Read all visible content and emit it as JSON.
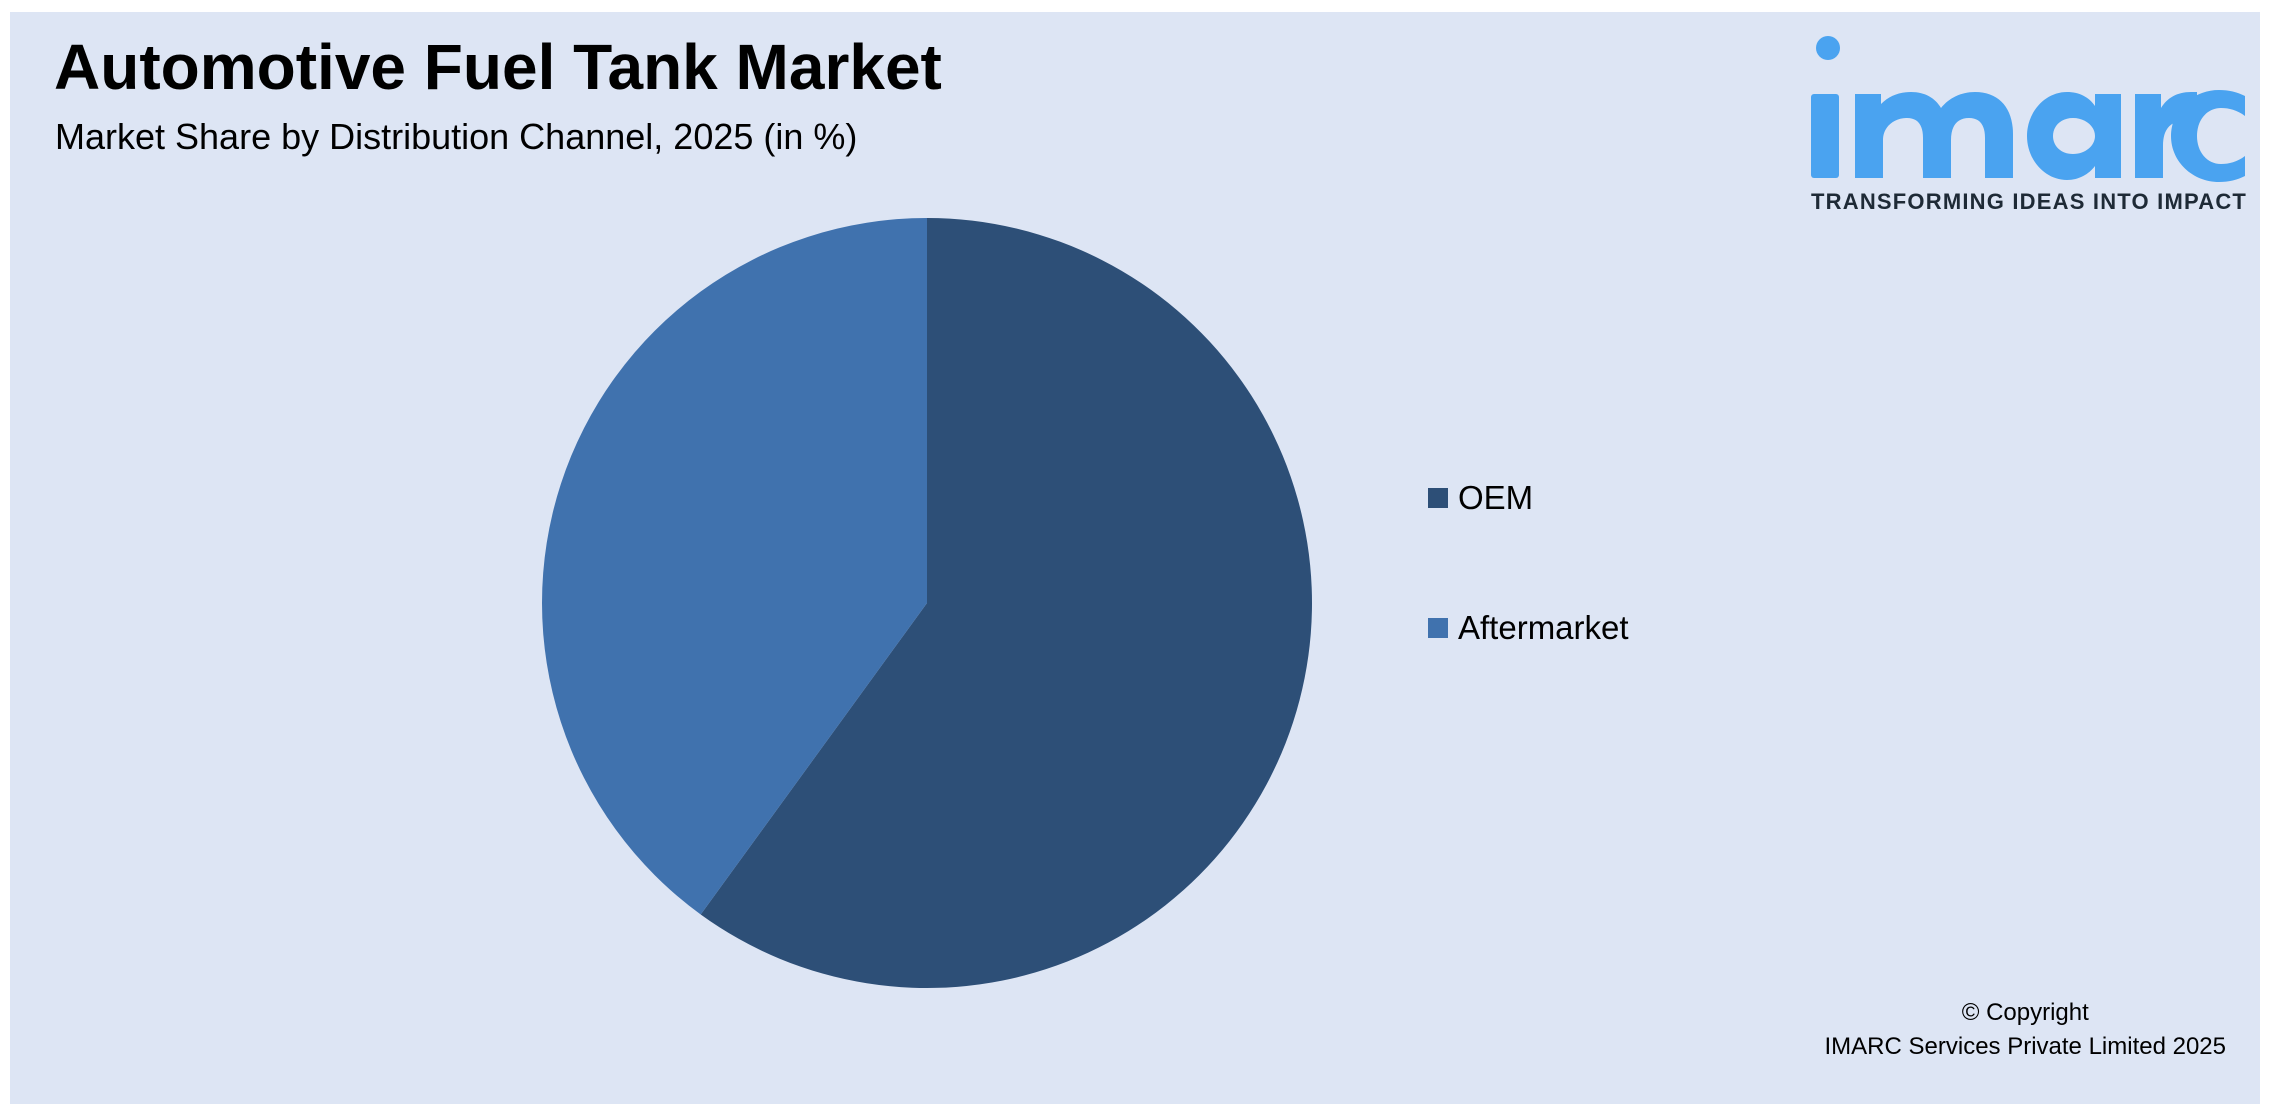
{
  "header": {
    "title": "Automotive Fuel Tank Market",
    "subtitle": "Market Share by Distribution Channel, 2025 (in %)"
  },
  "logo": {
    "wordmark": "imarc",
    "tagline": "TRANSFORMING IDEAS INTO IMPACT",
    "color": "#4aa3f0"
  },
  "chart_data": {
    "type": "pie",
    "title": "Automotive Fuel Tank Market",
    "subtitle": "Market Share by Distribution Channel, 2025 (in %)",
    "categories": [
      "OEM",
      "Aftermarket"
    ],
    "values": [
      60,
      40
    ],
    "colors": [
      "#2d4f77",
      "#4072ae"
    ],
    "start_angle_deg": 0,
    "direction": "clockwise",
    "legend_position": "right",
    "data_labels": false
  },
  "legend": {
    "items": [
      {
        "label": "OEM",
        "color": "#2d4f77"
      },
      {
        "label": "Aftermarket",
        "color": "#4072ae"
      }
    ]
  },
  "footer": {
    "copyright_line1": "© Copyright",
    "copyright_line2": "IMARC Services Private Limited 2025"
  }
}
